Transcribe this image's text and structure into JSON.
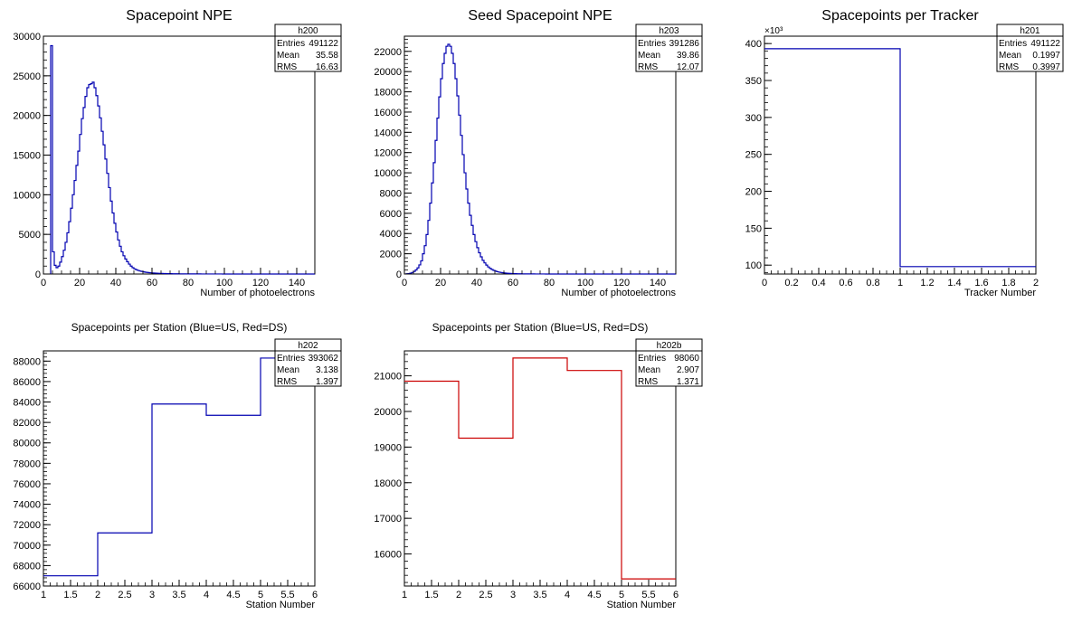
{
  "chart_data": [
    {
      "type": "bar",
      "title": "Spacepoint NPE",
      "xlabel": "Number of photoelectrons",
      "ylabel": "",
      "xlim": [
        0,
        150
      ],
      "ylim": [
        0,
        30000
      ],
      "xticks": [
        "0",
        "20",
        "40",
        "60",
        "80",
        "100",
        "120",
        "140"
      ],
      "yticks": [
        "0",
        "5000",
        "10000",
        "15000",
        "20000",
        "25000",
        "30000"
      ],
      "color": "#0000b0",
      "stats": {
        "name": "h200",
        "rows": [
          [
            "Entries",
            "491122"
          ],
          [
            "Mean",
            "35.58"
          ],
          [
            "RMS",
            "16.63"
          ]
        ]
      },
      "bin_width": 1,
      "x_start": 4,
      "values": [
        28800,
        2800,
        1100,
        800,
        1000,
        1500,
        2200,
        3000,
        4000,
        5200,
        6600,
        8300,
        10000,
        11800,
        13700,
        15500,
        17600,
        19600,
        21000,
        22400,
        23500,
        23900,
        24000,
        24200,
        23500,
        22500,
        21200,
        19700,
        18000,
        16300,
        14500,
        12700,
        10900,
        9200,
        7700,
        6400,
        5300,
        4300,
        3500,
        2800,
        2300,
        1900,
        1550,
        1250,
        1000,
        800,
        650,
        540,
        450,
        380,
        320,
        270,
        230,
        200,
        170,
        150,
        130,
        115,
        100,
        90,
        80,
        70,
        62,
        55,
        50,
        45,
        40,
        36,
        32,
        29,
        26,
        24,
        22,
        20,
        18,
        16,
        15,
        14,
        13,
        12,
        11,
        10,
        10,
        9,
        9,
        8,
        8,
        7,
        7,
        6,
        6,
        6,
        5,
        5,
        5,
        4,
        4,
        4,
        4,
        3,
        3,
        3,
        3,
        3,
        3,
        2,
        2,
        2,
        2,
        2,
        2,
        2,
        2,
        2,
        2,
        2,
        2,
        1,
        1,
        1,
        1,
        1,
        1,
        1,
        1,
        1,
        1,
        1,
        1,
        1,
        1,
        1,
        1,
        1,
        1,
        1,
        1,
        1,
        1,
        1,
        1,
        1,
        1,
        1,
        1,
        1
      ]
    },
    {
      "type": "bar",
      "title": "Seed Spacepoint NPE",
      "xlabel": "Number of photoelectrons",
      "ylabel": "",
      "xlim": [
        0,
        150
      ],
      "ylim": [
        0,
        23500
      ],
      "xticks": [
        "0",
        "20",
        "40",
        "60",
        "80",
        "100",
        "120",
        "140"
      ],
      "yticks": [
        "0",
        "2000",
        "4000",
        "6000",
        "8000",
        "10000",
        "12000",
        "14000",
        "16000",
        "18000",
        "20000",
        "22000"
      ],
      "color": "#0000b0",
      "stats": {
        "name": "h203",
        "rows": [
          [
            "Entries",
            "391286"
          ],
          [
            "Mean",
            "39.86"
          ],
          [
            "RMS",
            "12.07"
          ]
        ]
      },
      "bin_width": 1,
      "x_start": 1,
      "values": [
        20,
        40,
        80,
        150,
        250,
        400,
        600,
        900,
        1300,
        2000,
        2800,
        3900,
        5300,
        7000,
        9000,
        11000,
        13200,
        15400,
        17500,
        19300,
        20800,
        21800,
        22500,
        22700,
        22500,
        21800,
        20800,
        19300,
        17600,
        15700,
        13700,
        11800,
        10000,
        8400,
        7000,
        5800,
        4800,
        3900,
        3200,
        2600,
        2100,
        1700,
        1350,
        1100,
        880,
        700,
        560,
        450,
        360,
        290,
        230,
        185,
        150,
        120,
        100,
        80,
        65,
        55,
        45,
        38,
        32,
        27,
        23,
        20,
        17,
        15,
        13,
        11,
        10,
        9,
        8,
        7,
        6,
        5,
        5,
        4,
        4,
        3,
        3,
        3,
        2,
        2,
        2,
        2,
        2,
        1,
        1,
        1,
        1,
        1,
        1,
        1,
        1,
        1,
        1,
        1,
        1,
        1,
        1,
        1,
        1,
        1,
        1,
        1,
        1,
        1,
        1,
        1,
        1,
        1,
        1,
        1,
        1,
        1,
        1,
        1,
        1,
        1,
        1,
        1,
        1,
        1,
        1,
        1,
        1,
        1,
        1,
        1,
        1,
        1,
        1,
        1,
        1,
        1,
        1,
        1,
        1,
        1,
        1,
        1,
        1,
        1,
        1,
        1,
        1,
        1,
        1,
        1,
        1
      ]
    },
    {
      "type": "bar",
      "title": "Spacepoints per Tracker",
      "xlabel": "Tracker Number",
      "ylabel": "",
      "exponent_label": "×10³",
      "xlim": [
        0,
        2
      ],
      "ylim": [
        88,
        410
      ],
      "xticks": [
        "0",
        "0.2",
        "0.4",
        "0.6",
        "0.8",
        "1",
        "1.2",
        "1.4",
        "1.6",
        "1.8",
        "2"
      ],
      "yticks": [
        "100",
        "150",
        "200",
        "250",
        "300",
        "350",
        "400"
      ],
      "color": "#0000b0",
      "stats": {
        "name": "h201",
        "rows": [
          [
            "Entries",
            "491122"
          ],
          [
            "Mean",
            "0.1997"
          ],
          [
            "RMS",
            "0.3997"
          ]
        ]
      },
      "bin_width": 1,
      "x_start": 0,
      "values": [
        393,
        98
      ]
    },
    {
      "type": "bar",
      "title": "Spacepoints per Station (Blue=US, Red=DS)",
      "xlabel": "Station Number",
      "ylabel": "",
      "xlim": [
        1,
        6
      ],
      "ylim": [
        66000,
        89000
      ],
      "xticks": [
        "1",
        "1.5",
        "2",
        "2.5",
        "3",
        "3.5",
        "4",
        "4.5",
        "5",
        "5.5",
        "6"
      ],
      "yticks": [
        "66000",
        "68000",
        "70000",
        "72000",
        "74000",
        "76000",
        "78000",
        "80000",
        "82000",
        "84000",
        "86000",
        "88000"
      ],
      "color": "#0000b0",
      "stats": {
        "name": "h202",
        "rows": [
          [
            "Entries",
            "393062"
          ],
          [
            "Mean",
            "3.138"
          ],
          [
            "RMS",
            "1.397"
          ]
        ]
      },
      "bin_width": 1,
      "x_start": 1,
      "values": [
        67000,
        71200,
        83800,
        82700,
        88300
      ]
    },
    {
      "type": "bar",
      "title": "Spacepoints per Station (Blue=US, Red=DS)",
      "xlabel": "Station Number",
      "ylabel": "",
      "xlim": [
        1,
        6
      ],
      "ylim": [
        15100,
        21700
      ],
      "xticks": [
        "1",
        "1.5",
        "2",
        "2.5",
        "3",
        "3.5",
        "4",
        "4.5",
        "5",
        "5.5",
        "6"
      ],
      "yticks": [
        "16000",
        "17000",
        "18000",
        "19000",
        "20000",
        "21000"
      ],
      "color": "#cc0000",
      "stats": {
        "name": "h202b",
        "rows": [
          [
            "Entries",
            "98060"
          ],
          [
            "Mean",
            "2.907"
          ],
          [
            "RMS",
            "1.371"
          ]
        ]
      },
      "bin_width": 1,
      "x_start": 1,
      "values": [
        20850,
        19250,
        21500,
        21150,
        15300
      ]
    }
  ]
}
